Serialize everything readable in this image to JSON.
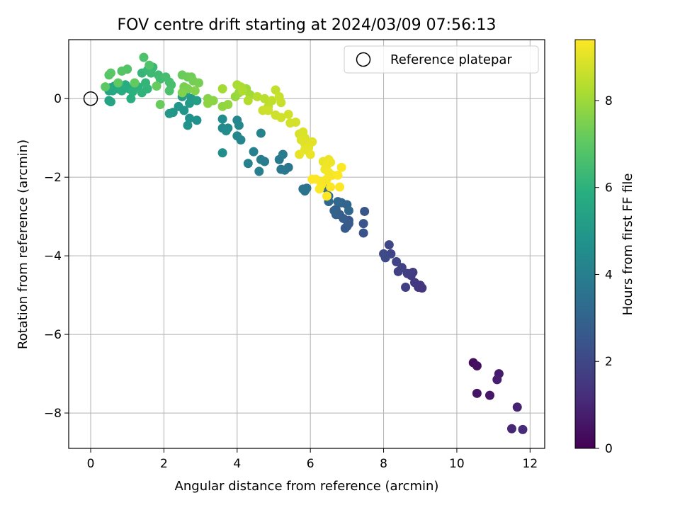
{
  "chart_data": {
    "type": "scatter",
    "title": "FOV centre drift starting at 2024/03/09 07:56:13",
    "xlabel": "Angular distance from reference (arcmin)",
    "ylabel": "Rotation from reference (arcmin)",
    "xlim": [
      -0.6,
      12.4
    ],
    "ylim": [
      -8.9,
      1.5
    ],
    "xticks": [
      0,
      2,
      4,
      6,
      8,
      10,
      12
    ],
    "yticks": [
      0,
      -2,
      -4,
      -6,
      -8
    ],
    "grid": true,
    "colormap": "viridis",
    "colorbar": {
      "label": "Hours from first FF file",
      "range": [
        0,
        9.4
      ],
      "ticks": [
        0,
        2,
        4,
        6,
        8
      ]
    },
    "legend": {
      "location": "upper right",
      "entries": [
        {
          "label": "Reference platepar",
          "marker": "open-circle"
        }
      ]
    },
    "reference_point": {
      "x": 0,
      "y": 0
    },
    "points": [
      [
        10.45,
        -6.72,
        0.3
      ],
      [
        10.55,
        -6.8,
        0.4
      ],
      [
        10.55,
        -7.5,
        0.5
      ],
      [
        10.9,
        -7.55,
        0.6
      ],
      [
        11.15,
        -7.0,
        0.7
      ],
      [
        11.1,
        -7.15,
        0.8
      ],
      [
        11.65,
        -7.85,
        0.9
      ],
      [
        11.5,
        -8.4,
        1.0
      ],
      [
        11.8,
        -8.42,
        1.1
      ],
      [
        9.05,
        -4.82,
        1.4
      ],
      [
        8.95,
        -4.8,
        1.45
      ],
      [
        9.0,
        -4.75,
        1.5
      ],
      [
        8.85,
        -4.68,
        1.55
      ],
      [
        8.75,
        -4.5,
        1.6
      ],
      [
        8.8,
        -4.42,
        1.65
      ],
      [
        8.65,
        -4.45,
        1.7
      ],
      [
        8.6,
        -4.8,
        1.75
      ],
      [
        8.4,
        -4.4,
        1.8
      ],
      [
        8.5,
        -4.3,
        1.85
      ],
      [
        8.35,
        -4.15,
        1.9
      ],
      [
        8.2,
        -3.95,
        1.95
      ],
      [
        8.15,
        -3.72,
        2.0
      ],
      [
        8.05,
        -4.05,
        2.05
      ],
      [
        8.0,
        -3.95,
        2.1
      ],
      [
        7.45,
        -3.42,
        2.4
      ],
      [
        7.45,
        -3.18,
        2.45
      ],
      [
        7.48,
        -2.87,
        2.5
      ],
      [
        7.05,
        -3.1,
        2.55
      ],
      [
        6.95,
        -3.3,
        2.6
      ],
      [
        7.0,
        -3.25,
        2.65
      ],
      [
        7.05,
        -3.18,
        2.7
      ],
      [
        6.9,
        -3.05,
        2.75
      ],
      [
        6.8,
        -2.95,
        2.8
      ],
      [
        6.7,
        -2.95,
        2.85
      ],
      [
        6.7,
        -2.82,
        2.9
      ],
      [
        6.65,
        -2.85,
        2.95
      ],
      [
        6.85,
        -2.65,
        3.0
      ],
      [
        7.0,
        -2.7,
        3.05
      ],
      [
        7.05,
        -2.85,
        3.1
      ],
      [
        6.75,
        -2.62,
        3.15
      ],
      [
        6.5,
        -2.62,
        3.2
      ],
      [
        6.5,
        -2.48,
        3.25
      ],
      [
        6.45,
        -2.3,
        3.3
      ],
      [
        5.85,
        -2.35,
        3.5
      ],
      [
        5.8,
        -2.3,
        3.55
      ],
      [
        5.9,
        -2.28,
        3.6
      ],
      [
        5.4,
        -1.75,
        3.65
      ],
      [
        5.3,
        -1.82,
        3.7
      ],
      [
        5.2,
        -1.8,
        3.75
      ],
      [
        5.15,
        -1.55,
        3.8
      ],
      [
        5.25,
        -1.42,
        3.85
      ],
      [
        4.75,
        -1.6,
        3.9
      ],
      [
        4.65,
        -1.55,
        3.95
      ],
      [
        4.6,
        -1.85,
        4.0
      ],
      [
        4.45,
        -1.35,
        4.05
      ],
      [
        4.3,
        -1.65,
        4.1
      ],
      [
        4.65,
        -0.88,
        4.15
      ],
      [
        4.1,
        -1.05,
        4.2
      ],
      [
        4.0,
        -0.95,
        4.25
      ],
      [
        4.0,
        -0.55,
        4.3
      ],
      [
        4.05,
        -0.68,
        4.35
      ],
      [
        3.75,
        -0.75,
        4.4
      ],
      [
        3.6,
        -0.75,
        4.45
      ],
      [
        3.7,
        -0.82,
        4.5
      ],
      [
        3.6,
        -0.52,
        4.55
      ],
      [
        3.6,
        -1.38,
        4.6
      ],
      [
        2.9,
        -0.55,
        4.7
      ],
      [
        2.7,
        -0.5,
        4.75
      ],
      [
        2.65,
        -0.68,
        4.8
      ],
      [
        2.55,
        -0.3,
        4.85
      ],
      [
        2.4,
        -0.2,
        4.9
      ],
      [
        2.25,
        -0.35,
        4.95
      ],
      [
        2.15,
        -0.38,
        5.0
      ],
      [
        2.7,
        -0.12,
        5.05
      ],
      [
        2.75,
        0.0,
        5.1
      ],
      [
        2.5,
        0.05,
        5.15
      ],
      [
        2.6,
        0.15,
        5.2
      ],
      [
        2.9,
        -0.05,
        5.25
      ],
      [
        0.5,
        -0.05,
        5.4
      ],
      [
        0.55,
        -0.08,
        5.45
      ],
      [
        0.5,
        0.2,
        5.5
      ],
      [
        0.6,
        0.2,
        5.55
      ],
      [
        0.55,
        0.28,
        5.6
      ],
      [
        0.65,
        0.32,
        5.65
      ],
      [
        0.75,
        0.25,
        5.7
      ],
      [
        0.85,
        0.2,
        5.75
      ],
      [
        0.95,
        0.35,
        5.8
      ],
      [
        1.05,
        0.25,
        5.85
      ],
      [
        1.1,
        0.0,
        5.9
      ],
      [
        1.15,
        0.18,
        5.95
      ],
      [
        1.3,
        0.3,
        6.0
      ],
      [
        1.4,
        0.15,
        6.05
      ],
      [
        1.55,
        0.25,
        6.1
      ],
      [
        1.5,
        0.4,
        6.15
      ],
      [
        1.4,
        0.65,
        6.2
      ],
      [
        1.55,
        0.72,
        6.25
      ],
      [
        1.7,
        0.8,
        6.3
      ],
      [
        1.65,
        0.65,
        6.35
      ],
      [
        1.85,
        0.6,
        6.4
      ],
      [
        1.9,
        0.5,
        6.45
      ],
      [
        2.05,
        0.55,
        6.5
      ],
      [
        2.15,
        0.42,
        6.55
      ],
      [
        2.2,
        0.35,
        6.6
      ],
      [
        2.15,
        0.2,
        6.65
      ],
      [
        1.45,
        1.05,
        6.7
      ],
      [
        1.6,
        0.85,
        6.75
      ],
      [
        1.0,
        0.75,
        6.8
      ],
      [
        0.85,
        0.7,
        6.85
      ],
      [
        0.5,
        0.6,
        6.9
      ],
      [
        0.55,
        0.65,
        6.95
      ],
      [
        0.4,
        0.3,
        7.0
      ],
      [
        0.75,
        0.4,
        7.05
      ],
      [
        1.2,
        0.4,
        7.1
      ],
      [
        1.8,
        0.32,
        7.15
      ],
      [
        1.9,
        -0.15,
        7.2
      ],
      [
        2.5,
        0.6,
        7.2
      ],
      [
        2.65,
        0.55,
        7.25
      ],
      [
        2.75,
        0.55,
        7.3
      ],
      [
        2.8,
        0.45,
        7.35
      ],
      [
        2.95,
        0.4,
        7.4
      ],
      [
        2.55,
        0.3,
        7.45
      ],
      [
        2.65,
        0.25,
        7.5
      ],
      [
        2.5,
        0.15,
        7.55
      ],
      [
        2.85,
        0.2,
        7.6
      ],
      [
        3.2,
        0.0,
        7.65
      ],
      [
        3.35,
        -0.05,
        7.7
      ],
      [
        3.2,
        -0.12,
        7.75
      ],
      [
        3.6,
        -0.2,
        7.8
      ],
      [
        3.75,
        -0.15,
        7.85
      ],
      [
        3.95,
        0.05,
        7.9
      ],
      [
        4.05,
        0.15,
        7.95
      ],
      [
        4.25,
        0.25,
        8.0
      ],
      [
        4.35,
        0.1,
        8.05
      ],
      [
        3.6,
        0.25,
        8.1
      ],
      [
        4.0,
        0.35,
        8.15
      ],
      [
        4.1,
        0.3,
        8.2
      ],
      [
        4.15,
        0.2,
        8.25
      ],
      [
        4.3,
        -0.05,
        8.3
      ],
      [
        4.55,
        0.05,
        8.35
      ],
      [
        4.75,
        0.0,
        8.4
      ],
      [
        4.85,
        -0.2,
        8.45
      ],
      [
        4.95,
        -0.05,
        8.5
      ],
      [
        5.05,
        0.22,
        8.55
      ],
      [
        5.15,
        0.05,
        8.6
      ],
      [
        5.2,
        -0.1,
        8.62
      ],
      [
        4.7,
        -0.3,
        8.65
      ],
      [
        4.85,
        -0.3,
        8.68
      ],
      [
        5.05,
        -0.42,
        8.7
      ],
      [
        5.2,
        -0.48,
        8.72
      ],
      [
        5.4,
        -0.4,
        8.75
      ],
      [
        5.45,
        -0.62,
        8.78
      ],
      [
        5.6,
        -0.6,
        8.8
      ],
      [
        5.7,
        -0.9,
        8.85
      ],
      [
        5.8,
        -0.85,
        8.88
      ],
      [
        5.85,
        -1.0,
        8.9
      ],
      [
        5.75,
        -1.05,
        8.92
      ],
      [
        5.85,
        -1.15,
        8.95
      ],
      [
        5.95,
        -1.2,
        8.98
      ],
      [
        6.05,
        -1.1,
        9.0
      ],
      [
        5.95,
        -1.25,
        9.02
      ],
      [
        5.85,
        -1.3,
        9.05
      ],
      [
        5.7,
        -1.42,
        9.08
      ],
      [
        6.0,
        -1.42,
        9.1
      ],
      [
        6.35,
        -1.6,
        9.12
      ],
      [
        6.5,
        -1.55,
        9.15
      ],
      [
        6.55,
        -1.62,
        9.17
      ],
      [
        6.45,
        -1.7,
        9.2
      ],
      [
        6.4,
        -1.8,
        9.22
      ],
      [
        6.5,
        -1.88,
        9.25
      ],
      [
        6.6,
        -1.95,
        9.27
      ],
      [
        6.45,
        -2.05,
        9.3
      ],
      [
        6.35,
        -2.1,
        9.32
      ],
      [
        6.3,
        -2.2,
        9.34
      ],
      [
        6.25,
        -2.3,
        9.36
      ],
      [
        6.55,
        -2.25,
        9.37
      ],
      [
        6.75,
        -1.95,
        9.38
      ],
      [
        6.85,
        -1.75,
        9.38
      ],
      [
        6.8,
        -2.25,
        9.39
      ],
      [
        6.45,
        -2.48,
        9.4
      ],
      [
        6.05,
        -2.05,
        9.4
      ],
      [
        6.15,
        -2.05,
        9.4
      ]
    ]
  }
}
